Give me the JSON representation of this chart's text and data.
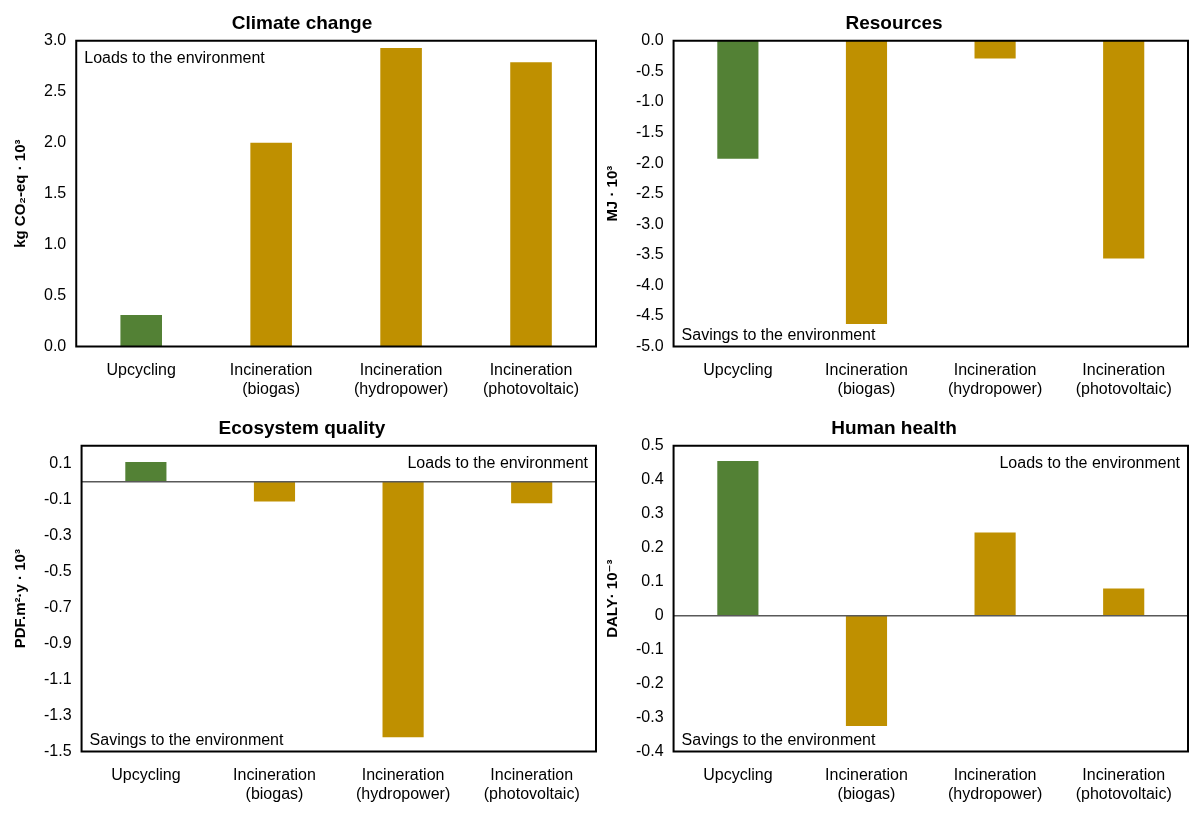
{
  "chart_data": [
    {
      "type": "bar",
      "title": "Climate change",
      "ylabel": "kg CO₂-eq · 10³",
      "categories": [
        "Upcycling",
        "Incineration (biogas)",
        "Incineration (hydropower)",
        "Incineration (photovoltaic)"
      ],
      "values": [
        0.31,
        2.0,
        2.93,
        2.79
      ],
      "colors": [
        "#538135",
        "#bf9000",
        "#bf9000",
        "#bf9000"
      ],
      "ylim": [
        0,
        3
      ],
      "yticks": [
        {
          "value": 0,
          "label": "0.0"
        },
        {
          "value": 0.5,
          "label": "0.5"
        },
        {
          "value": 1,
          "label": "1.0"
        },
        {
          "value": 1.5,
          "label": "1.5"
        },
        {
          "value": 2,
          "label": "2.0"
        },
        {
          "value": 2.5,
          "label": "2.5"
        },
        {
          "value": 3,
          "label": "3.0"
        }
      ],
      "annotations": [
        "Loads to the environment"
      ],
      "grid": false,
      "legend": false
    },
    {
      "type": "bar",
      "title": "Resources",
      "ylabel": "MJ · 10³",
      "categories": [
        "Upcycling",
        "Incineration (biogas)",
        "Incineration (hydropower)",
        "Incineration (photovoltaic)"
      ],
      "values": [
        -1.93,
        -4.63,
        -0.29,
        -3.56
      ],
      "colors": [
        "#538135",
        "#bf9000",
        "#bf9000",
        "#bf9000"
      ],
      "ylim": [
        -5,
        0
      ],
      "yticks": [
        {
          "value": -5,
          "label": "-5.0"
        },
        {
          "value": -4.5,
          "label": "-4.5"
        },
        {
          "value": -4,
          "label": "-4.0"
        },
        {
          "value": -3.5,
          "label": "-3.5"
        },
        {
          "value": -3,
          "label": "-3.0"
        },
        {
          "value": -2.5,
          "label": "-2.5"
        },
        {
          "value": -2,
          "label": "-2.0"
        },
        {
          "value": -1.5,
          "label": "-1.5"
        },
        {
          "value": -1,
          "label": "-1.0"
        },
        {
          "value": -0.5,
          "label": "-0.5"
        },
        {
          "value": 0,
          "label": "0.0"
        }
      ],
      "annotations": [
        "Savings to the environment"
      ],
      "grid": false,
      "legend": false
    },
    {
      "type": "bar",
      "title": "Ecosystem quality",
      "ylabel": "PDF.m²·y · 10³",
      "categories": [
        "Upcycling",
        "Incineration (biogas)",
        "Incineration (hydropower)",
        "Incineration (photovoltaic)"
      ],
      "values": [
        0.11,
        -0.11,
        -1.42,
        -0.12
      ],
      "colors": [
        "#538135",
        "#bf9000",
        "#bf9000",
        "#bf9000"
      ],
      "ylim": [
        -1.5,
        0.2
      ],
      "yticks": [
        -1.5,
        -1.3,
        -1.1,
        -0.9,
        -0.7,
        -0.5,
        -0.3,
        -0.1,
        0.1
      ],
      "annotations": [
        "Loads to the environment",
        "Savings to the environment"
      ],
      "ref_lines": [
        {
          "axis": "y",
          "value": 0,
          "color": "#595959"
        }
      ],
      "grid": false,
      "legend": false
    },
    {
      "type": "bar",
      "title": "Human health",
      "ylabel": "DALY· 10⁻³",
      "categories": [
        "Upcycling",
        "Incineration (biogas)",
        "Incineration (hydropower)",
        "Incineration (photovoltaic)"
      ],
      "values": [
        0.455,
        -0.325,
        0.245,
        0.08
      ],
      "colors": [
        "#538135",
        "#bf9000",
        "#bf9000",
        "#bf9000"
      ],
      "ylim": [
        -0.4,
        0.5
      ],
      "yticks": [
        -0.4,
        -0.3,
        -0.2,
        -0.1,
        0,
        0.1,
        0.2,
        0.3,
        0.4,
        0.5
      ],
      "annotations": [
        "Loads to the environment",
        "Savings to the environment"
      ],
      "ref_lines": [
        {
          "axis": "y",
          "value": 0,
          "color": "#595959"
        }
      ],
      "grid": false,
      "legend": false
    }
  ]
}
